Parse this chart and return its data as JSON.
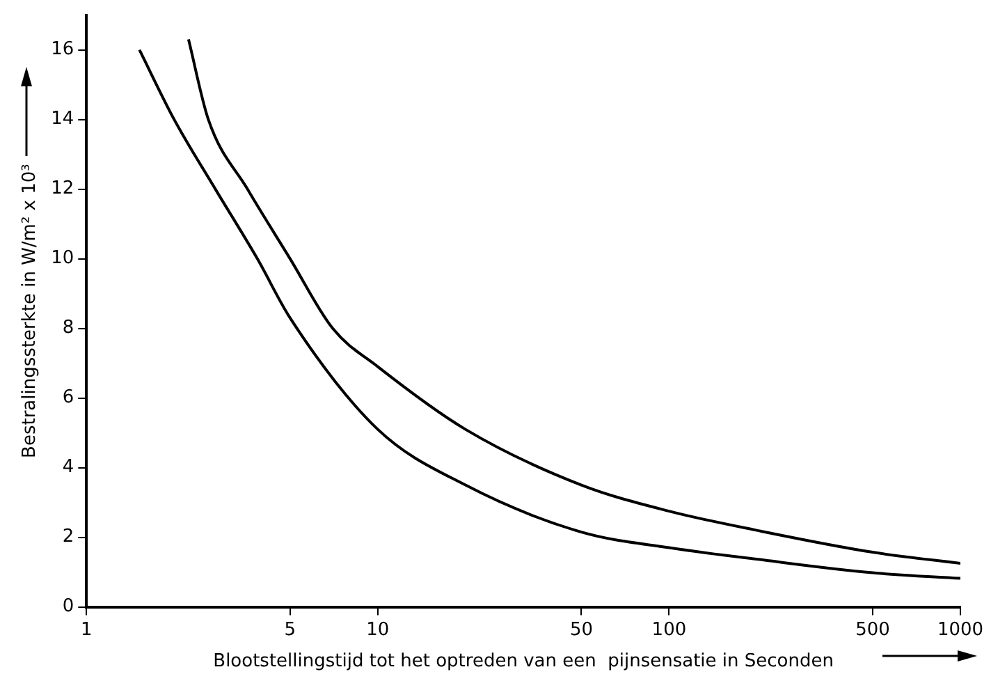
{
  "chart_data": {
    "type": "line",
    "xlabel": "Blootstellingstijd tot het optreden van een  pijnsensatie in Seconden",
    "ylabel": "Bestralingssterkte in W/m² x 10³",
    "log": "x",
    "xlim": [
      1,
      1000
    ],
    "xticks": [
      1,
      5,
      10,
      50,
      100,
      500,
      1000
    ],
    "ylim": [
      0,
      17
    ],
    "yticks": [
      0,
      2,
      4,
      6,
      8,
      10,
      12,
      14,
      16
    ],
    "grid": false,
    "legend": false,
    "marker": "none",
    "line_style": "solid",
    "series": [
      {
        "color": "#000000",
        "x": [
          1.52,
          2,
          2.77,
          3.86,
          5,
          10,
          20,
          50,
          100,
          200,
          500,
          1000
        ],
        "values": [
          16,
          14,
          12,
          10,
          8.3,
          5.1,
          3.5,
          2.15,
          1.7,
          1.37,
          0.98,
          0.82
        ]
      },
      {
        "color": "#000000",
        "x": [
          2.24,
          2.62,
          3.57,
          5,
          7,
          10,
          20,
          50,
          100,
          200,
          500,
          1000
        ],
        "values": [
          16.3,
          14,
          12,
          10,
          8,
          6.9,
          5.1,
          3.5,
          2.75,
          2.2,
          1.57,
          1.25
        ]
      }
    ]
  }
}
